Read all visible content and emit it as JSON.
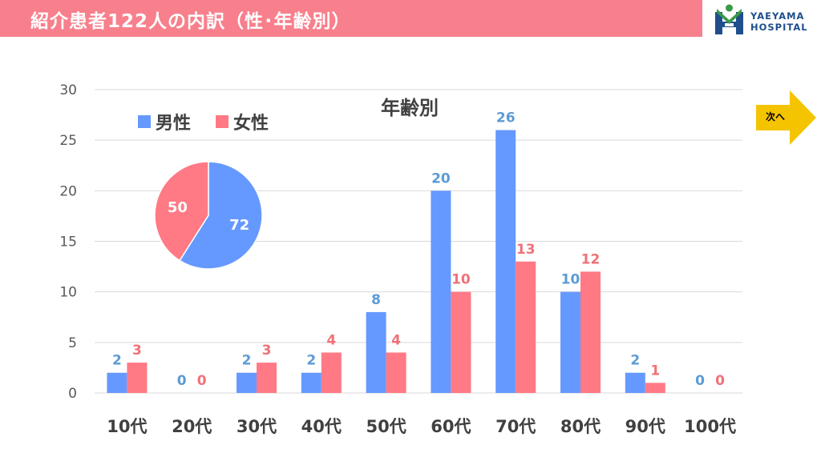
{
  "header": {
    "title": "紹介患者122人の内訳（性･年齢別）"
  },
  "logo": {
    "line1": "YAEYAMA",
    "line2": "HOSPITAL"
  },
  "next_button": {
    "label": "次へ"
  },
  "colors": {
    "male": "#6699ff",
    "female": "#ff7a85",
    "male_label": "#5b9bd5",
    "female_label": "#f07178",
    "title_bar": "#f7808c",
    "logo_blue": "#1f4e8c",
    "logo_green": "#3a9a47",
    "arrow": "#f5c400"
  },
  "chart_data": [
    {
      "type": "bar",
      "title": "年齢別",
      "categories": [
        "10代",
        "20代",
        "30代",
        "40代",
        "50代",
        "60代",
        "70代",
        "80代",
        "90代",
        "100代"
      ],
      "series": [
        {
          "name": "男性",
          "values": [
            2,
            0,
            2,
            2,
            8,
            20,
            26,
            10,
            2,
            0
          ]
        },
        {
          "name": "女性",
          "values": [
            3,
            0,
            3,
            4,
            4,
            10,
            13,
            12,
            1,
            0
          ]
        }
      ],
      "ylim": [
        0,
        30
      ],
      "yticks": [
        "0",
        "5",
        "10",
        "15",
        "20",
        "25",
        "30"
      ],
      "xlabel": "",
      "ylabel": "",
      "grid": true,
      "legend": "top-left"
    },
    {
      "type": "pie",
      "labels": [
        "男性",
        "女性"
      ],
      "values": [
        72,
        50
      ]
    }
  ]
}
